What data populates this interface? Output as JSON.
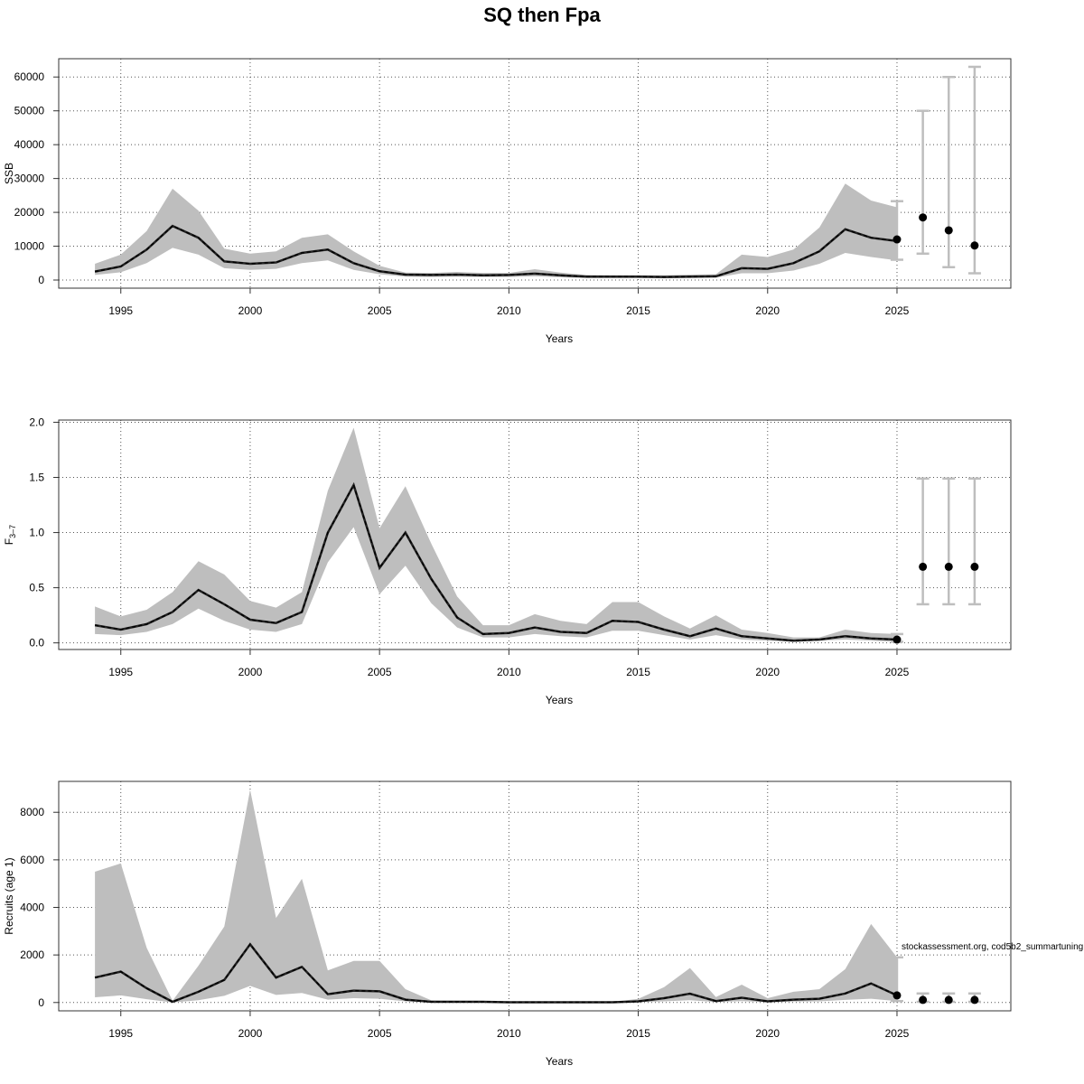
{
  "title": "SQ then Fpa",
  "footnote": "stockassessment.org, cod5b2_summartuning",
  "colors": {
    "band": "#bebebe",
    "line": "#222222",
    "grid": "#555555",
    "errorbar": "#bebebe",
    "point": "#000000"
  },
  "chart_data": [
    {
      "type": "line",
      "name": "ssb-panel",
      "xlabel": "Years",
      "ylabel": "SSB",
      "xlim": [
        1992.6,
        2029.4
      ],
      "ylim": [
        -2400,
        65400
      ],
      "xticks": [
        1995,
        2000,
        2005,
        2010,
        2015,
        2020,
        2025
      ],
      "yticks": [
        0,
        10000,
        20000,
        30000,
        40000,
        50000,
        60000
      ],
      "ytick_labels": [
        "0",
        "10000",
        "20000",
        "30000",
        "40000",
        "50000",
        "60000"
      ],
      "grid": true,
      "x": [
        1994,
        1995,
        1996,
        1997,
        1998,
        1999,
        2000,
        2001,
        2002,
        2003,
        2004,
        2005,
        2006,
        2007,
        2008,
        2009,
        2010,
        2011,
        2012,
        2013,
        2014,
        2015,
        2016,
        2017,
        2018,
        2019,
        2020,
        2021,
        2022,
        2023,
        2024,
        2025
      ],
      "estimate": [
        2500,
        4000,
        9000,
        16000,
        12500,
        5500,
        4800,
        5200,
        8000,
        9000,
        5000,
        2600,
        1600,
        1500,
        1600,
        1400,
        1500,
        1900,
        1400,
        1000,
        1000,
        1000,
        900,
        1000,
        1100,
        3500,
        3300,
        5000,
        8500,
        15000,
        12500,
        11500
      ],
      "lower": [
        1500,
        2300,
        5000,
        9500,
        7500,
        3500,
        3000,
        3300,
        5000,
        5800,
        3000,
        1700,
        1000,
        900,
        1000,
        900,
        900,
        1100,
        800,
        600,
        600,
        600,
        500,
        600,
        700,
        2000,
        2000,
        2800,
        4800,
        8000,
        6800,
        5800
      ],
      "upper": [
        4800,
        7500,
        14500,
        27000,
        20500,
        9300,
        7800,
        8500,
        12500,
        13500,
        8500,
        4200,
        2200,
        2100,
        2400,
        2100,
        2100,
        3200,
        2200,
        1500,
        1400,
        1400,
        1400,
        1600,
        1700,
        7500,
        6800,
        9000,
        15500,
        28500,
        23500,
        21500
      ],
      "forecast": {
        "x": [
          2025,
          2026,
          2027,
          2028
        ],
        "median": [
          12000,
          18500,
          14700,
          10200
        ],
        "lower": [
          6000,
          7800,
          3800,
          2000
        ],
        "upper": [
          23300,
          50000,
          60000,
          63000
        ]
      }
    },
    {
      "type": "line",
      "name": "f-panel",
      "xlabel": "Years",
      "ylabel": "F",
      "ylabel_sub": "3–7",
      "xlim": [
        1992.6,
        2029.4
      ],
      "ylim": [
        -0.06,
        2.02
      ],
      "xticks": [
        1995,
        2000,
        2005,
        2010,
        2015,
        2020,
        2025
      ],
      "yticks": [
        0,
        0.5,
        1,
        1.5,
        2
      ],
      "ytick_labels": [
        "0.0",
        "0.5",
        "1.0",
        "1.5",
        "2.0"
      ],
      "grid": true,
      "x": [
        1994,
        1995,
        1996,
        1997,
        1998,
        1999,
        2000,
        2001,
        2002,
        2003,
        2004,
        2005,
        2006,
        2007,
        2008,
        2009,
        2010,
        2011,
        2012,
        2013,
        2014,
        2015,
        2016,
        2017,
        2018,
        2019,
        2020,
        2021,
        2022,
        2023,
        2024,
        2025
      ],
      "estimate": [
        0.16,
        0.12,
        0.17,
        0.28,
        0.48,
        0.35,
        0.21,
        0.18,
        0.28,
        1.0,
        1.43,
        0.68,
        1.0,
        0.58,
        0.23,
        0.08,
        0.09,
        0.14,
        0.1,
        0.09,
        0.2,
        0.19,
        0.12,
        0.06,
        0.13,
        0.06,
        0.04,
        0.02,
        0.03,
        0.06,
        0.04,
        0.03
      ],
      "lower": [
        0.08,
        0.07,
        0.1,
        0.17,
        0.31,
        0.2,
        0.12,
        0.1,
        0.17,
        0.73,
        1.05,
        0.44,
        0.7,
        0.36,
        0.14,
        0.05,
        0.05,
        0.08,
        0.06,
        0.05,
        0.11,
        0.11,
        0.07,
        0.03,
        0.07,
        0.03,
        0.02,
        0.01,
        0.02,
        0.03,
        0.02,
        0.01
      ],
      "upper": [
        0.33,
        0.24,
        0.3,
        0.46,
        0.74,
        0.62,
        0.38,
        0.32,
        0.46,
        1.38,
        1.95,
        1.04,
        1.42,
        0.9,
        0.42,
        0.16,
        0.16,
        0.26,
        0.2,
        0.17,
        0.37,
        0.37,
        0.24,
        0.13,
        0.25,
        0.12,
        0.09,
        0.05,
        0.05,
        0.12,
        0.09,
        0.08
      ],
      "forecast": {
        "x": [
          2025,
          2026,
          2027,
          2028
        ],
        "median": [
          0.03,
          0.69,
          0.69,
          0.69
        ],
        "lower": [
          0.01,
          0.35,
          0.35,
          0.35
        ],
        "upper": [
          0.08,
          1.49,
          1.49,
          1.49
        ]
      }
    },
    {
      "type": "line",
      "name": "recruits-panel",
      "xlabel": "Years",
      "ylabel": "Recruits (age 1)",
      "xlim": [
        1992.6,
        2029.4
      ],
      "ylim": [
        -350,
        9300
      ],
      "xticks": [
        1995,
        2000,
        2005,
        2010,
        2015,
        2020,
        2025
      ],
      "yticks": [
        0,
        2000,
        4000,
        6000,
        8000
      ],
      "ytick_labels": [
        "0",
        "2000",
        "4000",
        "6000",
        "8000"
      ],
      "grid": true,
      "x": [
        1994,
        1995,
        1996,
        1997,
        1998,
        1999,
        2000,
        2001,
        2002,
        2003,
        2004,
        2005,
        2006,
        2007,
        2008,
        2009,
        2010,
        2011,
        2012,
        2013,
        2014,
        2015,
        2016,
        2017,
        2018,
        2019,
        2020,
        2021,
        2022,
        2023,
        2024,
        2025
      ],
      "estimate": [
        1050,
        1300,
        600,
        30,
        450,
        950,
        2450,
        1050,
        1500,
        350,
        500,
        470,
        120,
        30,
        30,
        30,
        10,
        10,
        10,
        10,
        10,
        50,
        180,
        370,
        60,
        200,
        50,
        120,
        160,
        380,
        800,
        300
      ],
      "lower": [
        220,
        300,
        140,
        5,
        100,
        280,
        700,
        320,
        400,
        120,
        180,
        160,
        50,
        10,
        10,
        10,
        3,
        3,
        3,
        3,
        3,
        15,
        50,
        100,
        20,
        60,
        15,
        40,
        50,
        110,
        160,
        60
      ],
      "upper": [
        5500,
        5850,
        2300,
        70,
        1550,
        3200,
        8950,
        3550,
        5200,
        1350,
        1750,
        1750,
        560,
        90,
        80,
        70,
        25,
        25,
        25,
        25,
        25,
        150,
        650,
        1450,
        230,
        750,
        180,
        450,
        560,
        1400,
        3300,
        1900
      ],
      "forecast": {
        "x": [
          2025,
          2026,
          2027,
          2028
        ],
        "median": [
          300,
          110,
          110,
          110
        ],
        "lower": [
          60,
          30,
          30,
          30
        ],
        "upper": [
          1900,
          380,
          380,
          380
        ]
      }
    }
  ]
}
